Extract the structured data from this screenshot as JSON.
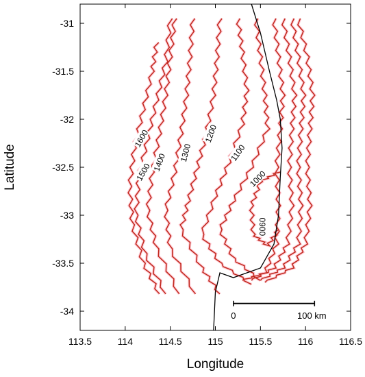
{
  "chart_data": {
    "type": "map",
    "xlabel": "Longitude",
    "ylabel": "Latitude",
    "xlim": [
      113.5,
      116.5
    ],
    "ylim": [
      -34.2,
      -30.8
    ],
    "x_ticks": [
      "113.5",
      "114",
      "114.5",
      "115",
      "115.5",
      "116",
      "116.5"
    ],
    "y_ticks": [
      "-31",
      "-31.5",
      "-32",
      "-32.5",
      "-33",
      "-33.5",
      "-34"
    ],
    "grid": false,
    "contour_color": "#c0281c",
    "halo_color": "#ffb8c6",
    "coastline_color": "#000000",
    "contours": [
      {
        "label": "1600",
        "label_lon": 114.18,
        "label_lat": -32.2,
        "label_angle": -60,
        "points": [
          [
            114.35,
            -31.2
          ],
          [
            114.3,
            -31.5
          ],
          [
            114.2,
            -31.9
          ],
          [
            114.1,
            -32.3
          ],
          [
            114.05,
            -32.7
          ],
          [
            114.08,
            -33.1
          ],
          [
            114.2,
            -33.5
          ],
          [
            114.38,
            -33.82
          ]
        ]
      },
      {
        "label": "1500",
        "label_lon": 114.2,
        "label_lat": -32.55,
        "label_angle": -60,
        "points": [
          [
            114.5,
            -30.95
          ],
          [
            114.45,
            -31.4
          ],
          [
            114.35,
            -31.8
          ],
          [
            114.25,
            -32.2
          ],
          [
            114.15,
            -32.6
          ],
          [
            114.12,
            -33.0
          ],
          [
            114.22,
            -33.4
          ],
          [
            114.45,
            -33.82
          ]
        ]
      },
      {
        "label": "1400",
        "label_lon": 114.38,
        "label_lat": -32.45,
        "label_angle": -70,
        "points": [
          [
            114.55,
            -30.95
          ],
          [
            114.5,
            -31.35
          ],
          [
            114.45,
            -31.75
          ],
          [
            114.38,
            -32.15
          ],
          [
            114.3,
            -32.55
          ],
          [
            114.25,
            -32.95
          ],
          [
            114.35,
            -33.35
          ],
          [
            114.6,
            -33.82
          ]
        ]
      },
      {
        "label": "1300",
        "label_lon": 114.67,
        "label_lat": -32.35,
        "label_angle": -75,
        "points": [
          [
            114.75,
            -30.95
          ],
          [
            114.72,
            -31.35
          ],
          [
            114.68,
            -31.75
          ],
          [
            114.62,
            -32.15
          ],
          [
            114.55,
            -32.55
          ],
          [
            114.45,
            -32.95
          ],
          [
            114.5,
            -33.35
          ],
          [
            114.78,
            -33.82
          ]
        ]
      },
      {
        "label": "1200",
        "label_lon": 114.95,
        "label_lat": -32.15,
        "label_angle": -70,
        "points": [
          [
            115.05,
            -30.95
          ],
          [
            115.02,
            -31.35
          ],
          [
            114.98,
            -31.75
          ],
          [
            114.9,
            -32.15
          ],
          [
            114.8,
            -32.5
          ],
          [
            114.7,
            -32.85
          ],
          [
            114.62,
            -33.15
          ],
          [
            114.85,
            -33.55
          ],
          [
            115.05,
            -33.82
          ]
        ]
      },
      {
        "label": "1100",
        "label_lon": 115.25,
        "label_lat": -32.35,
        "label_angle": -55,
        "points": [
          [
            115.25,
            -30.95
          ],
          [
            115.3,
            -31.3
          ],
          [
            115.35,
            -31.7
          ],
          [
            115.3,
            -32.05
          ],
          [
            115.15,
            -32.45
          ],
          [
            115.0,
            -32.8
          ],
          [
            114.85,
            -33.2
          ],
          [
            115.05,
            -33.5
          ],
          [
            115.4,
            -33.72
          ]
        ]
      },
      {
        "label": "1000",
        "label_lon": 115.47,
        "label_lat": -32.62,
        "label_angle": -45,
        "points": [
          [
            115.45,
            -30.95
          ],
          [
            115.5,
            -31.35
          ],
          [
            115.55,
            -31.75
          ],
          [
            115.58,
            -32.1
          ],
          [
            115.4,
            -32.5
          ],
          [
            115.2,
            -32.85
          ],
          [
            115.05,
            -33.15
          ],
          [
            115.2,
            -33.45
          ],
          [
            115.5,
            -33.68
          ]
        ]
      },
      {
        "label": "0900",
        "label_lon": 115.52,
        "label_lat": -33.12,
        "label_angle": 90,
        "points": [
          [
            115.7,
            -32.55
          ],
          [
            115.5,
            -32.65
          ],
          [
            115.4,
            -32.9
          ],
          [
            115.42,
            -33.2
          ],
          [
            115.58,
            -33.32
          ],
          [
            115.7,
            -33.15
          ]
        ]
      },
      {
        "label": "",
        "label_lon": 0,
        "label_lat": 0,
        "label_angle": 0,
        "points": [
          [
            115.65,
            -30.95
          ],
          [
            115.7,
            -31.35
          ],
          [
            115.75,
            -31.75
          ],
          [
            115.72,
            -32.1
          ],
          [
            115.68,
            -32.5
          ],
          [
            115.7,
            -32.9
          ],
          [
            115.68,
            -33.3
          ],
          [
            115.55,
            -33.6
          ],
          [
            115.3,
            -33.68
          ]
        ]
      },
      {
        "label": "",
        "label_lon": 0,
        "label_lat": 0,
        "label_angle": 0,
        "points": [
          [
            115.75,
            -30.95
          ],
          [
            115.82,
            -31.35
          ],
          [
            115.88,
            -31.75
          ],
          [
            115.85,
            -32.1
          ],
          [
            115.82,
            -32.5
          ],
          [
            115.85,
            -32.9
          ],
          [
            115.8,
            -33.3
          ],
          [
            115.65,
            -33.55
          ],
          [
            115.4,
            -33.68
          ]
        ]
      },
      {
        "label": "",
        "label_lon": 0,
        "label_lat": 0,
        "label_angle": 0,
        "points": [
          [
            115.85,
            -30.95
          ],
          [
            115.92,
            -31.35
          ],
          [
            115.98,
            -31.75
          ],
          [
            115.95,
            -32.1
          ],
          [
            115.92,
            -32.5
          ],
          [
            115.95,
            -32.9
          ],
          [
            115.92,
            -33.3
          ],
          [
            115.75,
            -33.55
          ],
          [
            115.5,
            -33.68
          ]
        ]
      },
      {
        "label": "",
        "label_lon": 0,
        "label_lat": 0,
        "label_angle": 0,
        "points": [
          [
            115.92,
            -30.95
          ],
          [
            116.02,
            -31.35
          ],
          [
            116.08,
            -31.75
          ],
          [
            116.05,
            -32.1
          ],
          [
            116.02,
            -32.5
          ],
          [
            116.05,
            -32.9
          ],
          [
            116.0,
            -33.3
          ],
          [
            115.85,
            -33.55
          ],
          [
            115.55,
            -33.7
          ]
        ]
      }
    ],
    "coastline": [
      [
        115.4,
        -30.8
      ],
      [
        115.5,
        -31.1
      ],
      [
        115.6,
        -31.5
      ],
      [
        115.68,
        -31.8
      ],
      [
        115.72,
        -32.0
      ],
      [
        115.74,
        -32.3
      ],
      [
        115.72,
        -32.6
      ],
      [
        115.7,
        -33.0
      ],
      [
        115.65,
        -33.3
      ],
      [
        115.5,
        -33.55
      ],
      [
        115.2,
        -33.65
      ],
      [
        115.05,
        -33.6
      ],
      [
        115.0,
        -33.8
      ],
      [
        114.98,
        -34.2
      ]
    ],
    "scale_bar": {
      "start_lon": 115.2,
      "end_lon": 116.1,
      "lat": -33.92,
      "start_label": "0",
      "end_label": "100 km"
    }
  }
}
